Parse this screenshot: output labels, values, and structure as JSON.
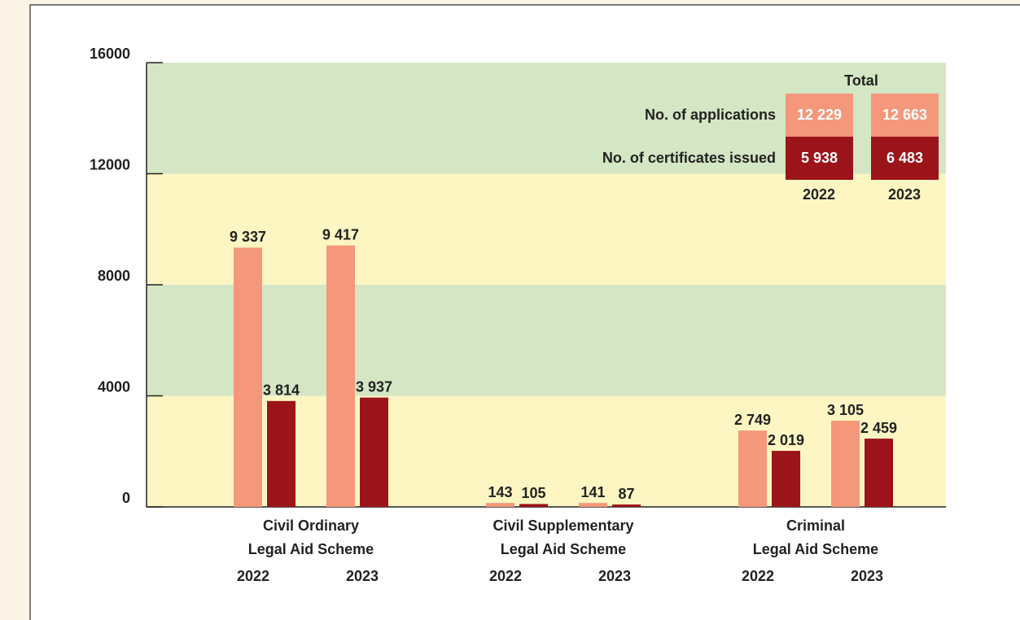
{
  "chart_data": {
    "type": "bar",
    "groups": [
      [
        "Civil Ordinary",
        "Legal Aid Scheme"
      ],
      [
        "Civil Supplementary",
        "Legal Aid Scheme"
      ],
      [
        "Criminal",
        "Legal Aid Scheme"
      ]
    ],
    "categories": [
      "2022",
      "2023",
      "2022",
      "2023",
      "2022",
      "2023"
    ],
    "series": [
      {
        "name": "No. of applications",
        "color": "#f4977a",
        "values": [
          9337,
          9417,
          143,
          141,
          2749,
          3105
        ],
        "value_labels": [
          "9 337",
          "9 417",
          "143",
          "141",
          "2 749",
          "3 105"
        ],
        "totals": [
          12229,
          12663
        ],
        "total_labels": [
          "12 229",
          "12 663"
        ]
      },
      {
        "name": "No.  of certificates issued",
        "color": "#9b1419",
        "values": [
          3814,
          3937,
          105,
          87,
          2019,
          2459
        ],
        "value_labels": [
          "3 814",
          "3 937",
          "105",
          "87",
          "2 019",
          "2 459"
        ],
        "totals": [
          5938,
          6483
        ],
        "total_labels": [
          "5 938",
          "6 483"
        ]
      }
    ],
    "totals_title": "Total",
    "totals_years": [
      "2022",
      "2023"
    ],
    "ylim": [
      0,
      16000
    ],
    "yticks": [
      0,
      4000,
      8000,
      12000,
      16000
    ],
    "bands": [
      "#fdf6c3",
      "#d4e6c4"
    ]
  }
}
